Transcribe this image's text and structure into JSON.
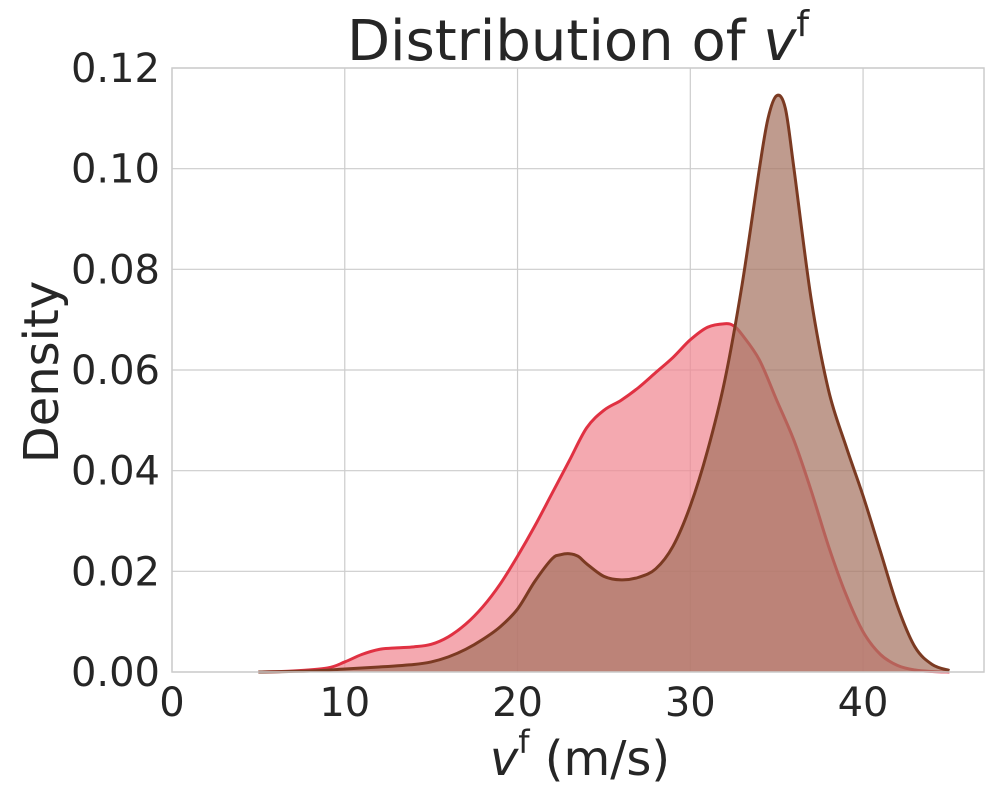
{
  "chart_data": {
    "type": "area",
    "title": {
      "text": "Distribution of ",
      "var": "v",
      "sup": "f"
    },
    "xlabel": {
      "var": "v",
      "sup": "f",
      "text": " (m/s)"
    },
    "ylabel": "Density",
    "xlim": [
      0,
      47
    ],
    "ylim": [
      0,
      0.12
    ],
    "xticks": [
      0,
      10,
      20,
      30,
      40
    ],
    "xtick_labels": [
      "0",
      "10",
      "20",
      "30",
      "40"
    ],
    "yticks": [
      0,
      0.02,
      0.04,
      0.06,
      0.08,
      0.1,
      0.12
    ],
    "ytick_labels": [
      "0.00",
      "0.02",
      "0.04",
      "0.06",
      "0.08",
      "0.10",
      "0.12"
    ],
    "grid": true,
    "series": [
      {
        "color_line": "#e03142",
        "color_fill": "#f08891",
        "fill_opacity": 0.72,
        "x": [
          5,
          7,
          9,
          10,
          11,
          12,
          13,
          14,
          15,
          16,
          17,
          18,
          19,
          20,
          21,
          22,
          23,
          24,
          25,
          26,
          27,
          28,
          29,
          30,
          31,
          32,
          32.5,
          33,
          34,
          35,
          36,
          37,
          38,
          39,
          40,
          41,
          42,
          43,
          44,
          45
        ],
        "y": [
          0,
          0.0002,
          0.0008,
          0.002,
          0.0035,
          0.0045,
          0.0048,
          0.005,
          0.0055,
          0.007,
          0.0095,
          0.013,
          0.0175,
          0.023,
          0.029,
          0.0355,
          0.042,
          0.0485,
          0.052,
          0.054,
          0.0565,
          0.0595,
          0.0625,
          0.066,
          0.0685,
          0.0692,
          0.0688,
          0.067,
          0.062,
          0.054,
          0.046,
          0.036,
          0.025,
          0.0155,
          0.008,
          0.0035,
          0.0013,
          0.0004,
          0.0001,
          0
        ]
      },
      {
        "color_line": "#7b3a22",
        "color_fill": "#a67462",
        "fill_opacity": 0.72,
        "x": [
          5,
          8,
          10,
          12,
          14,
          15,
          16,
          17,
          18,
          19,
          20,
          21,
          22,
          22.5,
          23,
          23.5,
          24,
          25,
          26,
          27,
          28,
          29,
          30,
          31,
          32,
          33,
          34,
          34.5,
          35,
          35.5,
          36,
          37,
          38,
          39,
          40,
          41,
          42,
          43,
          44,
          45
        ],
        "y": [
          0,
          0.0002,
          0.0006,
          0.001,
          0.0015,
          0.002,
          0.003,
          0.0045,
          0.0065,
          0.009,
          0.0125,
          0.018,
          0.0225,
          0.0233,
          0.0235,
          0.023,
          0.0215,
          0.019,
          0.0183,
          0.0188,
          0.0205,
          0.025,
          0.033,
          0.044,
          0.058,
          0.077,
          0.1,
          0.11,
          0.1145,
          0.112,
          0.1,
          0.074,
          0.056,
          0.045,
          0.035,
          0.024,
          0.013,
          0.005,
          0.0015,
          0.0003
        ]
      }
    ]
  }
}
